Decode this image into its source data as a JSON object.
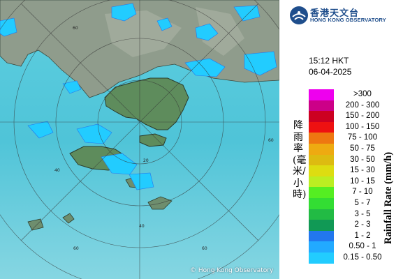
{
  "map": {
    "copyright": "© Hong Kong Observatory"
  },
  "logo": {
    "name_cn": "香港天文台",
    "name_en": "HONG KONG OBSERVATORY"
  },
  "time": "15:12 HKT",
  "date": "06-04-2025",
  "legend": {
    "title_cn": "降雨率(毫米/小時)",
    "title_en": "Rainfall Rate (mm/h)",
    "levels": [
      {
        "label": ">300",
        "color": "#ee00ee"
      },
      {
        "label": "200 - 300",
        "color": "#cc0088"
      },
      {
        "label": "150 - 200",
        "color": "#cc0022"
      },
      {
        "label": "100 - 150",
        "color": "#ee1111"
      },
      {
        "label": "75 - 100",
        "color": "#ee7711"
      },
      {
        "label": "50 - 75",
        "color": "#eeaa11"
      },
      {
        "label": "30 - 50",
        "color": "#ddbb11"
      },
      {
        "label": "15 - 30",
        "color": "#dddd11"
      },
      {
        "label": "10 - 15",
        "color": "#bbee22"
      },
      {
        "label": "7 - 10",
        "color": "#55ee22"
      },
      {
        "label": "5 - 7",
        "color": "#33dd33"
      },
      {
        "label": "3 - 5",
        "color": "#22bb44"
      },
      {
        "label": "2 - 3",
        "color": "#119955"
      },
      {
        "label": "1 - 2",
        "color": "#2277ee"
      },
      {
        "label": "0.50 - 1",
        "color": "#22aaff"
      },
      {
        "label": "0.15 - 0.50",
        "color": "#22ccff"
      }
    ]
  },
  "range_rings": {
    "labels": [
      "60",
      "40",
      "20",
      "60",
      "60",
      "40",
      "60"
    ]
  }
}
